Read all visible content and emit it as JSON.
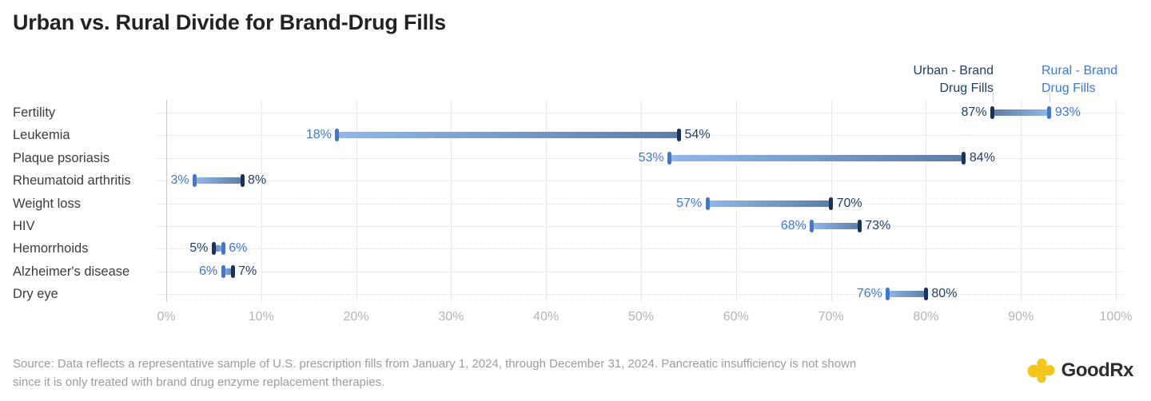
{
  "title": "Urban vs. Rural Divide for Brand-Drug Fills",
  "legend": {
    "urban": {
      "line1": "Urban - Brand",
      "line2": "Drug Fills"
    },
    "rural": {
      "line1": "Rural - Brand",
      "line2": "Drug Fills"
    }
  },
  "chart_data": {
    "type": "dumbbell",
    "title": "Urban vs. Rural Divide for Brand-Drug Fills",
    "categories": [
      "Fertility",
      "Leukemia",
      "Plaque psoriasis",
      "Rheumatoid arthritis",
      "Weight loss",
      "HIV",
      "Hemorrhoids",
      "Alzheimer's disease",
      "Dry eye"
    ],
    "series": [
      {
        "name": "Urban - Brand Drug Fills",
        "values": [
          87,
          54,
          84,
          8,
          70,
          73,
          5,
          7,
          80
        ],
        "cap_color": "#16325F",
        "text_color": "#1E3F6D",
        "bar_color": "#5E7DA6"
      },
      {
        "name": "Rural - Brand Drug Fills",
        "values": [
          93,
          18,
          53,
          3,
          57,
          68,
          6,
          6,
          76
        ],
        "cap_color": "#3B79D5",
        "text_color": "#3B79D5",
        "bar_color": "#92B7E8"
      }
    ],
    "x_ticks": [
      "0%",
      "10%",
      "20%",
      "30%",
      "40%",
      "50%",
      "60%",
      "70%",
      "80%",
      "90%",
      "100%"
    ],
    "xlim": [
      0,
      100
    ],
    "value_suffix": "%",
    "grid": {
      "vertical_lines": true,
      "row_guides": "dotted"
    },
    "legend_position": "top-right"
  },
  "source": {
    "line1": "Source: Data reflects a representative sample of U.S. prescription fills from January 1, 2024, through December 31, 2024. Pancreatic insufficiency is not shown",
    "line2": "since it is only treated with brand drug enzyme replacement therapies."
  },
  "logo": {
    "text": "GoodRx",
    "plus_color": "#F4C61A"
  },
  "colors": {
    "title": "#232323",
    "category_label": "#3C3C3C",
    "axis_label": "#B3B3B3",
    "gridline": "#E9E9E9",
    "zero_line": "#C9C9C9",
    "row_guide": "#DFDFDF",
    "source_text": "#9C9C9C",
    "background": "#FFFFFF"
  }
}
